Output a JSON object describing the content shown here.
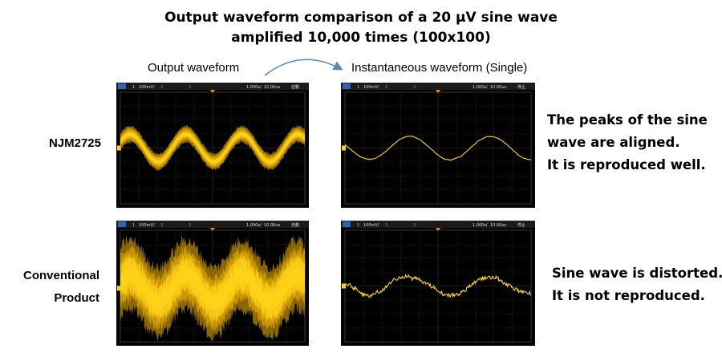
{
  "title": {
    "line1": "Output waveform comparison of a 20 μV sine wave",
    "line2": "amplified 10,000 times (100x100)"
  },
  "column_headers": {
    "left": "Output waveform",
    "right": "Instantaneous waveform (Single)"
  },
  "rows": [
    {
      "label_lines": [
        "NJM2725"
      ],
      "comment_lines": [
        "The peaks of the sine",
        "wave are aligned.",
        "It is reproduced well."
      ]
    },
    {
      "label_lines": [
        "Conventional",
        "Product"
      ],
      "comment_lines": [
        "Sine wave is distorted.",
        "It is not reproduced."
      ]
    }
  ],
  "scope_status": {
    "channel": "1",
    "volts_per_div": "100mV/",
    "channel2": "2",
    "channel3": "3",
    "time_per_div_left": "1.000s/",
    "offset_left": "10.00us",
    "mode_left": "自動",
    "time_per_div_right": "1.000s/",
    "offset_right": "10.00us",
    "mode_right": "停止"
  },
  "colors": {
    "trace": "#ffd21a",
    "trace_dark": "#b98a00",
    "grid": "#3a3a3a",
    "status_bar": "#1b1b1b",
    "arrow": "#5a86b8"
  },
  "chart_data": [
    {
      "type": "line",
      "title": "NJM2725 – Output waveform (persistence)",
      "description_series": "sine wave with thin noise envelope",
      "cycles": 3.3,
      "amplitude_div": 0.45,
      "noise_div": 0.22
    },
    {
      "type": "line",
      "title": "NJM2725 – Instantaneous waveform (Single)",
      "cycles": 2.3,
      "amplitude_div": 0.38,
      "noise_div": 0.03
    },
    {
      "type": "line",
      "title": "Conventional Product – Output waveform (persistence)",
      "cycles": 3.3,
      "amplitude_div": 0.45,
      "noise_div": 1.15
    },
    {
      "type": "line",
      "title": "Conventional Product – Instantaneous waveform (Single)",
      "cycles": 2.3,
      "amplitude_div": 0.3,
      "noise_div": 0.18
    }
  ]
}
